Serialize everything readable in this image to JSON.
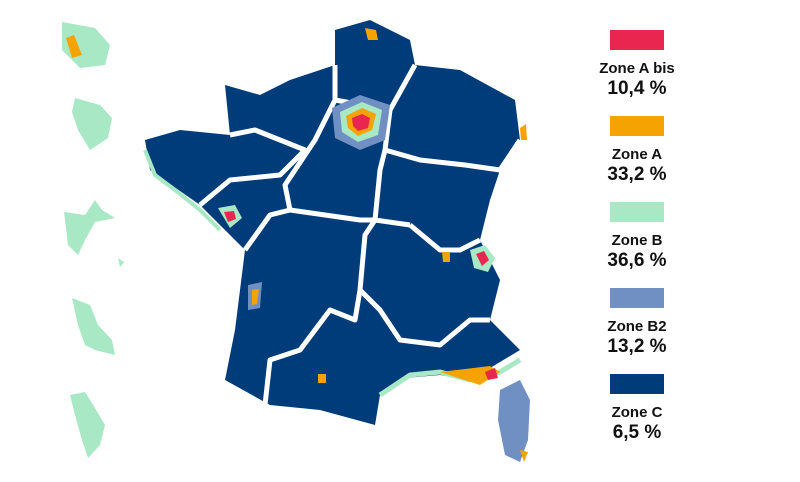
{
  "legend": {
    "items": [
      {
        "label": "Zone A bis",
        "share": "10,4 %",
        "color": "#e8264f"
      },
      {
        "label": "Zone A",
        "share": "33,2 %",
        "color": "#f5a300"
      },
      {
        "label": "Zone B",
        "share": "36,6 %",
        "color": "#a8e8c4"
      },
      {
        "label": "Zone B2",
        "share": "13,2 %",
        "color": "#7090c4"
      },
      {
        "label": "Zone C",
        "share": "6,5 %",
        "color": "#003b7a"
      }
    ]
  }
}
